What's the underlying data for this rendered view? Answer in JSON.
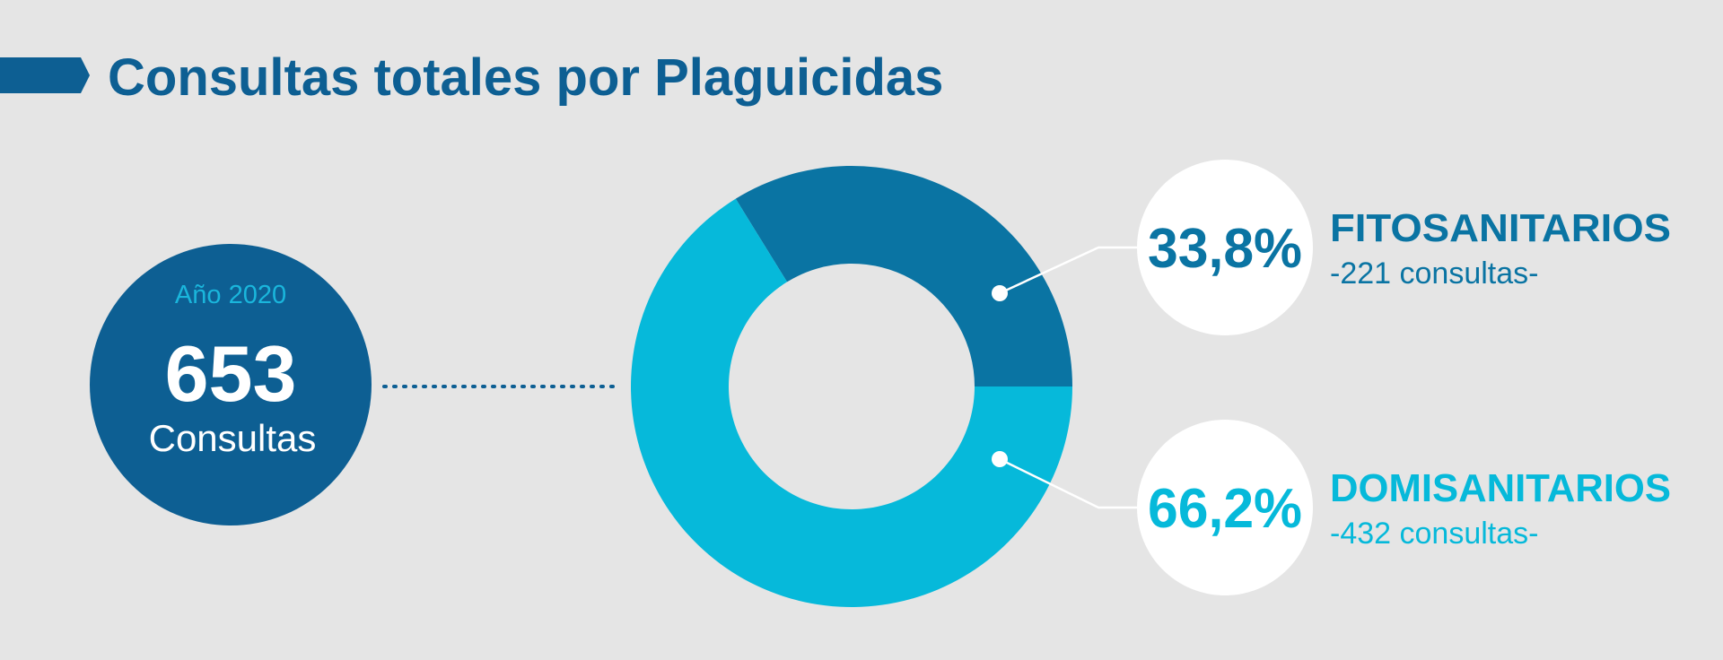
{
  "chart_data": {
    "type": "donut",
    "title": "Consultas totales por Plaguicidas",
    "total": {
      "label": "Año 2020",
      "value": 653,
      "unit": "Consultas"
    },
    "categories": [
      "FITOSANITARIOS",
      "DOMISANITARIOS"
    ],
    "values": [
      33.8,
      66.2
    ],
    "value_labels": [
      "33,8%",
      "66,2%"
    ],
    "count_labels": [
      "-221 consultas-",
      "-432 consultas-"
    ],
    "colors": [
      "#0a74a3",
      "#06b9da"
    ]
  }
}
